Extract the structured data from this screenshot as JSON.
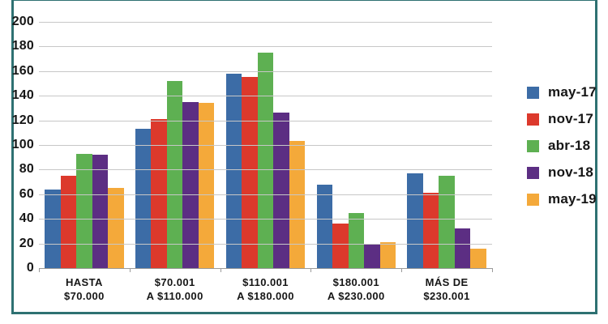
{
  "chart_data": {
    "type": "bar",
    "title": "",
    "xlabel": "",
    "ylabel": "",
    "categories": [
      "HASTA\n$70.000",
      "$70.001\nA $110.000",
      "$110.001\nA $180.000",
      "$180.001\nA $230.000",
      "MÁS DE\n$230.001"
    ],
    "series": [
      {
        "name": "may-17",
        "color": "#3C6CA6",
        "values": [
          64,
          113,
          158,
          68,
          77
        ]
      },
      {
        "name": "nov-17",
        "color": "#DC392C",
        "values": [
          75,
          121,
          155,
          36,
          61
        ]
      },
      {
        "name": "abr-18",
        "color": "#5EB052",
        "values": [
          93,
          152,
          175,
          45,
          75
        ]
      },
      {
        "name": "nov-18",
        "color": "#5C2E83",
        "values": [
          92,
          135,
          126,
          19,
          32
        ]
      },
      {
        "name": "may-19",
        "color": "#F4A93A",
        "values": [
          65,
          134,
          103,
          21,
          16
        ]
      }
    ],
    "ylim": [
      0,
      200
    ],
    "y_ticks": [
      200,
      180,
      160,
      140,
      120,
      100,
      80,
      60,
      40,
      20,
      0
    ],
    "y_tick_labels": [
      "200",
      "180",
      "160",
      "140",
      "120",
      "100",
      "80",
      "60",
      "40",
      "20",
      "0"
    ],
    "grid": true,
    "legend_position": "right",
    "legend_entries": [
      "may-17",
      "nov-17",
      "abr-18",
      "nov-18",
      "may-19"
    ]
  },
  "frame": {
    "border_color": "#2E7172",
    "gridline_color": "#c7c7c7",
    "axis_color": "#9a9a9a",
    "text_color": "#161616"
  }
}
